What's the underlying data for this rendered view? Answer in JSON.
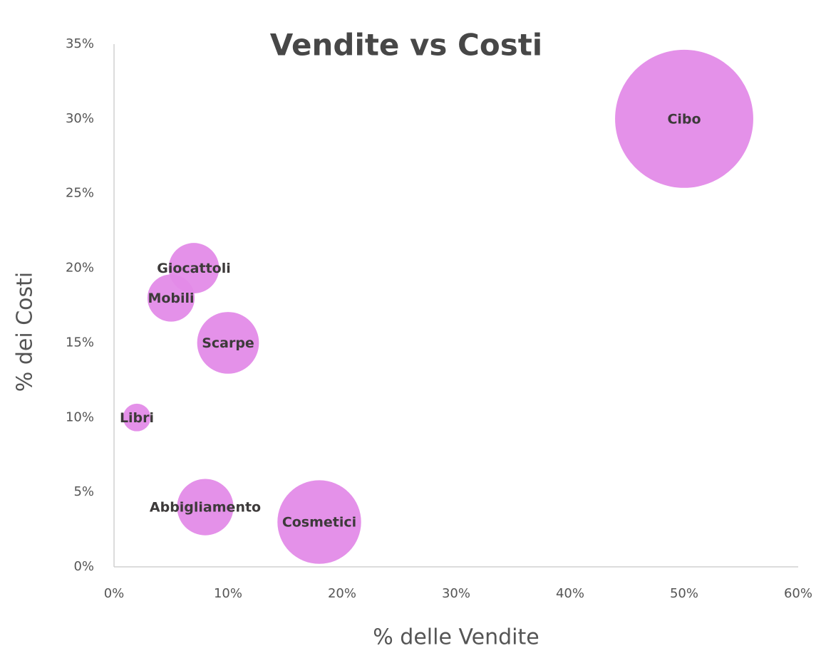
{
  "chart_data": {
    "type": "bubble",
    "title": "Vendite vs Costi",
    "x_label": "% delle Vendite",
    "y_label": "% dei Costi",
    "categories": [
      "Cibo",
      "Giocattoli",
      "Mobili",
      "Scarpe",
      "Libri",
      "Abbigliamento",
      "Cosmetici"
    ],
    "x": [
      50,
      7,
      5,
      10,
      2,
      8,
      18
    ],
    "values": [
      30,
      20,
      18,
      15,
      10,
      4,
      3
    ],
    "sizes": [
      30,
      4,
      3.5,
      6,
      1.2,
      5,
      11
    ],
    "color": "#e38be8",
    "xlim": [
      0,
      60
    ],
    "ylim": [
      0,
      35
    ],
    "xticks": [
      {
        "value": 0,
        "label": "0%"
      },
      {
        "value": 10,
        "label": "10%"
      },
      {
        "value": 20,
        "label": "20%"
      },
      {
        "value": 30,
        "label": "30%"
      },
      {
        "value": 40,
        "label": "40%"
      },
      {
        "value": 50,
        "label": "50%"
      },
      {
        "value": 60,
        "label": "60%"
      }
    ],
    "yticks": [
      {
        "value": 0,
        "label": "0%"
      },
      {
        "value": 5,
        "label": "5%"
      },
      {
        "value": 10,
        "label": "10%"
      },
      {
        "value": 15,
        "label": "15%"
      },
      {
        "value": 20,
        "label": "20%"
      },
      {
        "value": 25,
        "label": "25%"
      },
      {
        "value": 30,
        "label": "30%"
      },
      {
        "value": 35,
        "label": "35%"
      }
    ]
  }
}
